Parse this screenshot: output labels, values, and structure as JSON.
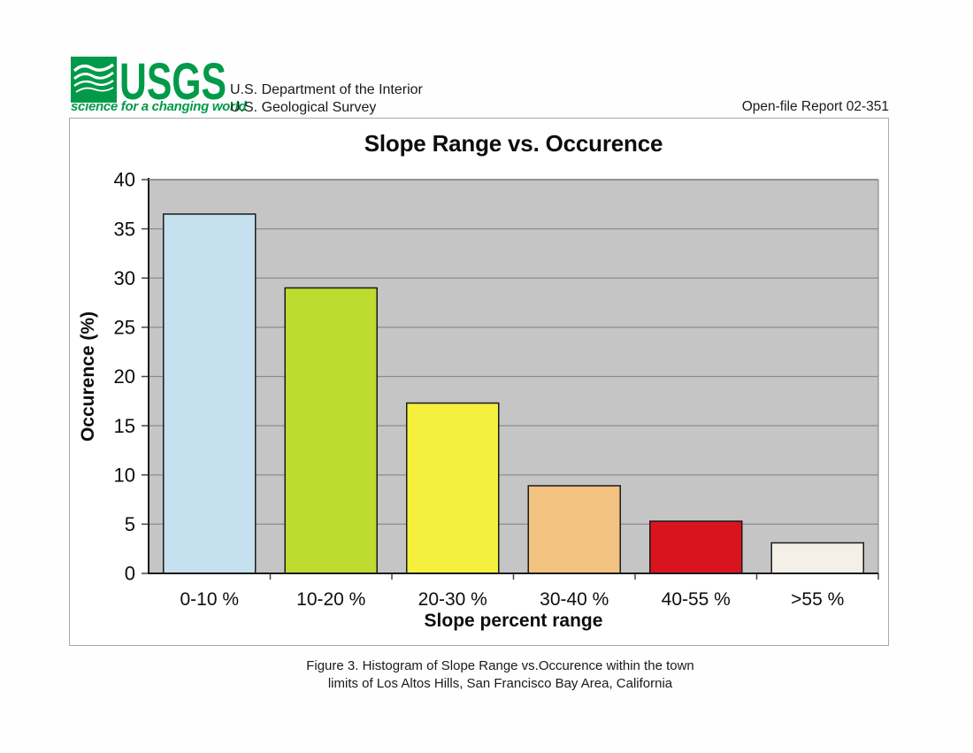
{
  "header": {
    "logo_text": "USGS",
    "tagline": "science for a changing world",
    "dept_line1": "U.S. Department of the Interior",
    "dept_line2": "U.S. Geological Survey",
    "report_label": "Open-file Report 02-351",
    "logo_green": "#009a49"
  },
  "chart_data": {
    "type": "bar",
    "title": "Slope Range vs. Occurence",
    "xlabel": "Slope percent range",
    "ylabel": "Occurence (%)",
    "categories": [
      "0-10 %",
      "10-20 %",
      "20-30 %",
      "30-40 %",
      "40-55 %",
      ">55 %"
    ],
    "values": [
      36.5,
      29,
      17.3,
      8.9,
      5.3,
      3.1
    ],
    "bar_colors": [
      "#c5e0ef",
      "#bedb30",
      "#f5ef3d",
      "#f1c280",
      "#da141f",
      "#f4f0e8"
    ],
    "ylim": [
      0,
      40
    ],
    "ytick_step": 5,
    "grid": "horizontal-only",
    "legend": "none",
    "plot_bg": "#c5c5c5",
    "grid_color": "#8c8c8c",
    "axis_color": "#1a1a1a",
    "bar_border": "#1a1a1a"
  },
  "caption": {
    "line1": "Figure 3. Histogram of Slope Range vs.Occurence within the town",
    "line2": "limits of Los Altos Hills, San Francisco Bay Area, California"
  }
}
